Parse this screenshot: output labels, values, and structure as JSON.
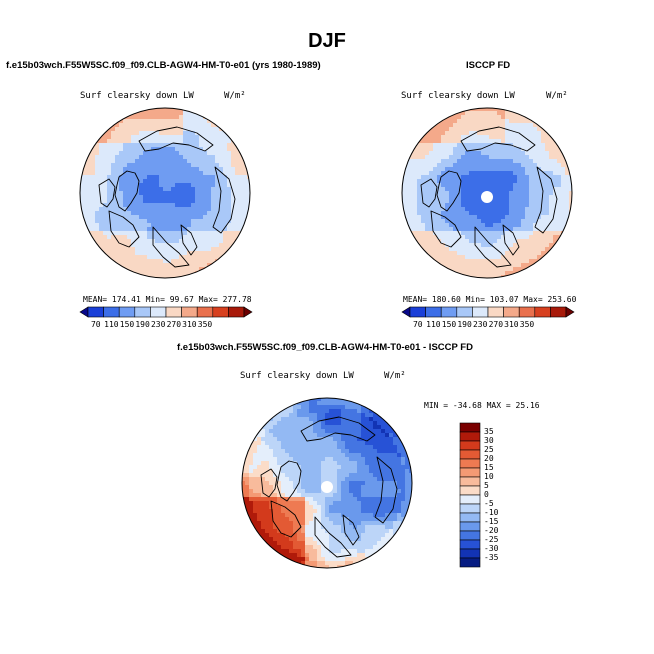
{
  "page": {
    "title": "DJF"
  },
  "chart_data": [
    {
      "type": "heatmap",
      "title": "f.e15b03wch.F55W5SC.f09_f09.CLB-AGW4-HM-T0-e01 (yrs 1980-1989)",
      "field_label": "Surf clearsky down LW",
      "units": "W/m²",
      "projection": "north polar stereographic",
      "stats": {
        "mean": "174.41",
        "min": "99.67",
        "max": "277.78"
      },
      "stats_text": "MEAN= 174.41   Min=  99.67   Max= 277.78",
      "colorbar_ticks": [
        "70",
        "110",
        "150",
        "190",
        "230",
        "270",
        "310",
        "350"
      ],
      "colorbar_colors": [
        "#08088a",
        "#1a3fd8",
        "#3c6ee8",
        "#6f9cf2",
        "#a9c8f8",
        "#dce9fb",
        "#f9d8c4",
        "#f4a98a",
        "#e9704d",
        "#d7401f",
        "#a81a0a",
        "#6b0000"
      ]
    },
    {
      "type": "heatmap",
      "title": "ISCCP FD",
      "field_label": "Surf clearsky down LW",
      "units": "W/m²",
      "projection": "north polar stereographic",
      "stats": {
        "mean": "180.60",
        "min": "103.07",
        "max": "253.60"
      },
      "stats_text": "MEAN= 180.60   Min= 103.07   Max= 253.60",
      "colorbar_ticks": [
        "70",
        "110",
        "150",
        "190",
        "230",
        "270",
        "310",
        "350"
      ],
      "colorbar_colors": [
        "#08088a",
        "#1a3fd8",
        "#3c6ee8",
        "#6f9cf2",
        "#a9c8f8",
        "#dce9fb",
        "#f9d8c4",
        "#f4a98a",
        "#e9704d",
        "#d7401f",
        "#a81a0a",
        "#6b0000"
      ]
    },
    {
      "type": "heatmap",
      "title": "f.e15b03wch.F55W5SC.f09_f09.CLB-AGW4-HM-T0-e01 - ISCCP FD",
      "field_label": "Surf clearsky down LW",
      "units": "W/m²",
      "projection": "north polar stereographic",
      "stats": {
        "min": "-34.68",
        "max": "25.16"
      },
      "stats_text": "MIN = -34.68 MAX =  25.16",
      "colorbar_ticks": [
        "35",
        "30",
        "25",
        "20",
        "15",
        "10",
        "5",
        "0",
        "-5",
        "-10",
        "-15",
        "-20",
        "-25",
        "-30",
        "-35"
      ],
      "colorbar_colors": [
        "#7a0000",
        "#b01a0a",
        "#d33a1c",
        "#e35a34",
        "#ee7a52",
        "#f49a74",
        "#f8bb9c",
        "#fbdcc8",
        "#e4eefb",
        "#bcd5f8",
        "#93b9f3",
        "#6a99ec",
        "#4475e2",
        "#2752d6",
        "#1233b4",
        "#061c82"
      ]
    }
  ]
}
